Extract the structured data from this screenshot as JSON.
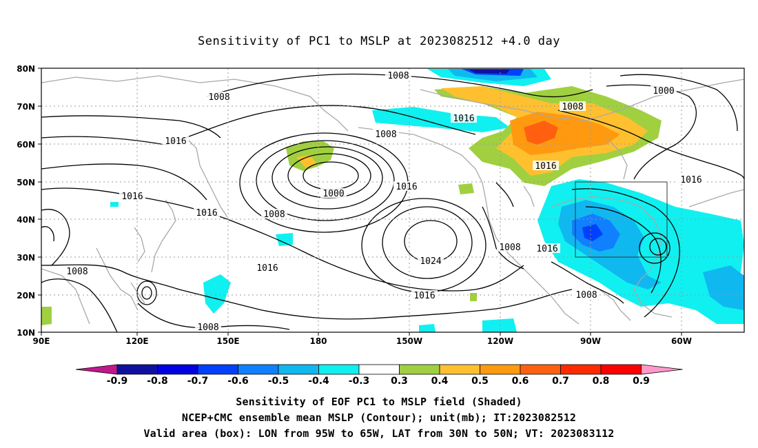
{
  "title": "Sensitivity of PC1 to MSLP at 2023082512 +4.0 day",
  "lat_labels": [
    "80N",
    "70N",
    "60N",
    "50N",
    "40N",
    "30N",
    "20N",
    "10N"
  ],
  "lon_labels": [
    "90E",
    "120E",
    "150E",
    "180",
    "150W",
    "120W",
    "90W",
    "60W"
  ],
  "contour_labels": [
    {
      "text": "1008"
    },
    {
      "text": "1008"
    },
    {
      "text": "1016"
    },
    {
      "text": "1016"
    },
    {
      "text": "1016"
    },
    {
      "text": "1008"
    },
    {
      "text": "1000"
    },
    {
      "text": "1008"
    },
    {
      "text": "1016"
    },
    {
      "text": "1016"
    },
    {
      "text": "1024"
    },
    {
      "text": "1016"
    },
    {
      "text": "1008"
    },
    {
      "text": "1008"
    },
    {
      "text": "1016"
    },
    {
      "text": "1008"
    },
    {
      "text": "1016"
    },
    {
      "text": "1000"
    },
    {
      "text": "1016"
    },
    {
      "text": "1008"
    },
    {
      "text": "1016"
    },
    {
      "text": "1008"
    }
  ],
  "colorbar": {
    "labels": [
      "-0.9",
      "-0.8",
      "-0.7",
      "-0.6",
      "-0.5",
      "-0.4",
      "-0.3",
      "0.3",
      "0.4",
      "0.5",
      "0.6",
      "0.7",
      "0.8",
      "0.9"
    ],
    "colors": [
      "#1010a0",
      "#0000e0",
      "#0040ff",
      "#1080ff",
      "#10b8f0",
      "#10f0f0",
      "#ffffff",
      "#a0d040",
      "#ffc030",
      "#ff9a10",
      "#ff6010",
      "#ff2a00",
      "#ff0000"
    ],
    "left_arrow_color": "#c0188c",
    "right_arrow_color": "#ff99cc"
  },
  "valid_box": {
    "lon_min": -95,
    "lon_max": -65,
    "lat_min": 30,
    "lat_max": 50
  },
  "captions": {
    "line1": "Sensitivity of EOF PC1 to MSLP field (Shaded)",
    "line2": "NCEP+CMC ensemble mean MSLP (Contour); unit(mb); IT:2023082512",
    "line3": "Valid area (box): LON from 95W to 65W, LAT from 30N to 50N; VT: 2023083112"
  }
}
